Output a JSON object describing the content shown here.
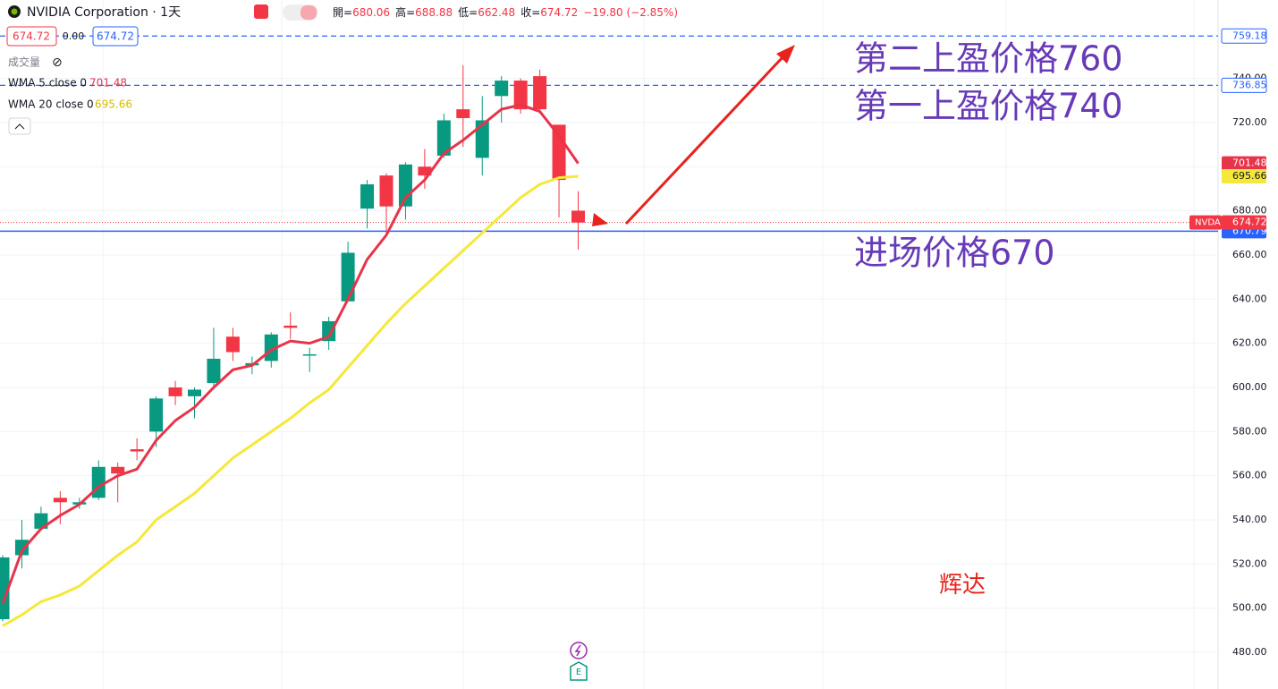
{
  "header": {
    "symbol": "NVIDIA Corporation · 1天",
    "ohlc_names": [
      "開=",
      "高=",
      "低=",
      "收="
    ],
    "change": "−19.80 (−2.85%)",
    "spread": "0.00",
    "volume_label": "成交量"
  },
  "chart_data": {
    "type": "candlestick",
    "categories": [
      null,
      null,
      null,
      null,
      null,
      null,
      null,
      null,
      null,
      null,
      null,
      null,
      null,
      null,
      null,
      null,
      null,
      null,
      null,
      null,
      null,
      null,
      null,
      null,
      null,
      null,
      null,
      null,
      null,
      null,
      null
    ],
    "open": [
      495,
      524,
      536,
      550,
      547,
      550,
      564,
      572,
      580,
      600,
      596,
      602,
      623,
      610,
      612,
      628,
      615,
      621,
      639,
      681,
      696,
      682,
      700,
      705,
      726,
      704,
      732,
      739,
      741,
      719,
      680.06
    ],
    "high": [
      524,
      540,
      546,
      553,
      550,
      567,
      566,
      577,
      596,
      603,
      600,
      627,
      627,
      614,
      625,
      634,
      618,
      632,
      666,
      694,
      697,
      702,
      708,
      724,
      746,
      732,
      741,
      740,
      744,
      719,
      688.88
    ],
    "low": [
      494,
      518,
      535,
      538,
      545,
      549,
      548,
      567,
      573,
      592,
      586,
      599,
      612,
      606,
      609,
      622,
      607,
      617,
      639,
      672,
      669,
      676,
      690,
      704,
      709,
      696,
      720,
      724,
      724,
      677,
      662.48
    ],
    "close": [
      523,
      531,
      543,
      548,
      548,
      564,
      561,
      571,
      595,
      596,
      599,
      613,
      616,
      611,
      624,
      627,
      615,
      630,
      661,
      692,
      682,
      701,
      696,
      721,
      722,
      721,
      739,
      726,
      726,
      694,
      674.72
    ],
    "up_color": "#089981",
    "down_color": "#f23645",
    "series": [
      {
        "name": "WMA 5 close 0",
        "color": "#e8344a",
        "values": [
          502,
          526,
          536,
          542,
          547,
          555,
          560,
          563,
          576,
          585,
          591,
          600,
          608,
          610,
          617,
          621,
          620,
          623,
          640,
          658,
          669,
          686,
          694,
          706,
          712,
          719,
          726,
          728,
          725,
          714,
          701.48
        ]
      },
      {
        "name": "WMA 20 close 0",
        "color": "#f5e83a",
        "values": [
          492,
          497,
          503,
          506,
          510,
          517,
          524,
          530,
          540,
          546,
          552,
          560,
          568,
          574,
          580,
          586,
          593,
          599,
          609,
          619,
          629,
          638,
          646,
          654,
          662,
          670,
          678,
          686,
          692,
          695,
          695.66
        ]
      }
    ],
    "ylim": [
      463.4,
      775.5
    ],
    "yticks": [
      {
        "value": 480,
        "label": "480.00"
      },
      {
        "value": 500,
        "label": "500.00"
      },
      {
        "value": 520,
        "label": "520.00"
      },
      {
        "value": 540,
        "label": "540.00"
      },
      {
        "value": 560,
        "label": "560.00"
      },
      {
        "value": 580,
        "label": "580.00"
      },
      {
        "value": 600,
        "label": "600.00"
      },
      {
        "value": 620,
        "label": "620.00"
      },
      {
        "value": 640,
        "label": "640.00"
      },
      {
        "value": 660,
        "label": "660.00"
      },
      {
        "value": 680,
        "label": "680.00"
      },
      {
        "value": 700,
        "label": "700.00"
      },
      {
        "value": 720,
        "label": "720.00"
      },
      {
        "value": 740,
        "label": "740.00"
      }
    ],
    "grid": true,
    "hlines": [
      {
        "value": 759.18,
        "color": "#2962ff",
        "style": "dashed"
      },
      {
        "value": 736.85,
        "color": "#2962ff",
        "style": "dashed"
      },
      {
        "value": 670.79,
        "color": "#2962ff",
        "style": "solid"
      }
    ],
    "price_tag": "NVDA",
    "annotations": [
      {
        "text": "第二上盈价格760",
        "color": "#673ab7"
      },
      {
        "text": "第一上盈价格740",
        "color": "#673ab7"
      },
      {
        "text": "进场价格670",
        "color": "#673ab7"
      },
      {
        "text": "辉达",
        "color": "#e8231e"
      }
    ]
  }
}
